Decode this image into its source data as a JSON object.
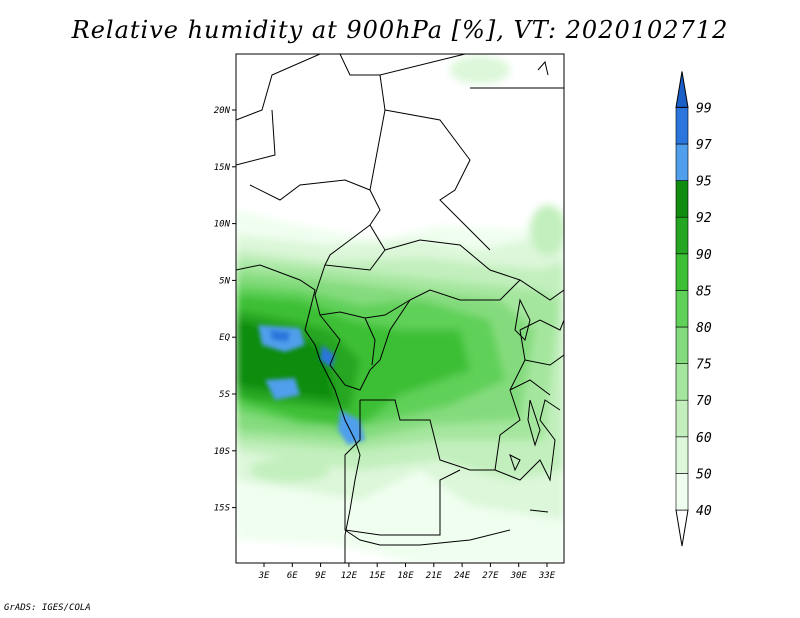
{
  "title": "Relative humidity at 900hPa [%], VT: 2020102712",
  "credit": "GrADS: IGES/COLA",
  "map": {
    "lon_labels": [
      "3E",
      "6E",
      "9E",
      "12E",
      "15E",
      "18E",
      "21E",
      "24E",
      "27E",
      "30E",
      "33E"
    ],
    "lat_labels": [
      "20N",
      "15N",
      "10N",
      "5N",
      "EQ",
      "5S",
      "10S",
      "15S"
    ]
  },
  "colorbar": {
    "levels": [
      "40",
      "50",
      "60",
      "70",
      "75",
      "80",
      "85",
      "90",
      "92",
      "95",
      "97",
      "99"
    ],
    "colors": [
      "#f0fef0",
      "#dcf7d9",
      "#c2efbd",
      "#a5e69f",
      "#84db7d",
      "#5fd058",
      "#3cbf35",
      "#25a622",
      "#108c10",
      "#4f9fed",
      "#2a76dc",
      "#1a5fc8"
    ]
  }
}
